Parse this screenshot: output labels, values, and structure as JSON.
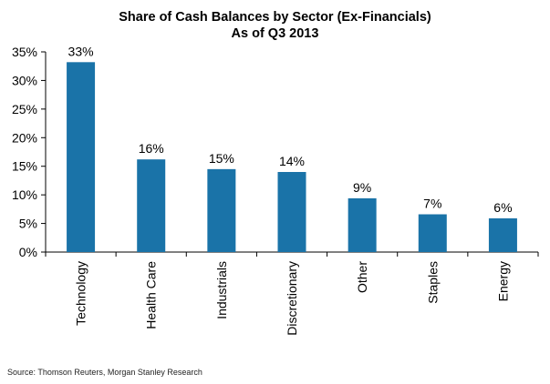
{
  "title": "Share of Cash Balances by Sector (Ex-Financials)",
  "subtitle": "As of Q3 2013",
  "source": "Source: Thomson Reuters, Morgan Stanley Research",
  "chart_data": {
    "type": "bar",
    "title": "Share of Cash Balances by Sector (Ex-Financials)",
    "subtitle": "As of Q3 2013",
    "categories": [
      "Technology",
      "Health Care",
      "Industrials",
      "Discretionary",
      "Other",
      "Staples",
      "Energy"
    ],
    "values": [
      33.2,
      16.2,
      14.5,
      14.0,
      9.4,
      6.6,
      5.9
    ],
    "data_labels": [
      "33%",
      "16%",
      "15%",
      "14%",
      "9%",
      "7%",
      "6%"
    ],
    "ylim": [
      0,
      35
    ],
    "yticks": [
      0,
      5,
      10,
      15,
      20,
      25,
      30,
      35
    ],
    "ytick_labels": [
      "0%",
      "5%",
      "10%",
      "15%",
      "20%",
      "25%",
      "30%",
      "35%"
    ],
    "xlabel": "",
    "ylabel": "",
    "grid": false,
    "bar_color": "#1a73a8"
  }
}
